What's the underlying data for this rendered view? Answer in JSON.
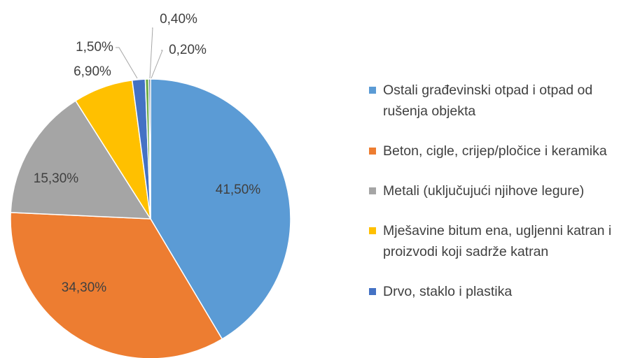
{
  "chart_data": {
    "type": "pie",
    "categories": [
      "Ostali građevinski otpad i otpad od rušenja objekta",
      "Beton, cigle, crijep/pločice i keramika",
      "Metali (uključujući njihove legure)",
      "Mješavine bitum ena, ugljenni katran i proizvodi koji sadrže katran",
      "Drvo, staklo i plastika",
      null,
      null
    ],
    "values": [
      41.5,
      34.3,
      15.3,
      6.9,
      1.5,
      0.4,
      0.2
    ],
    "value_labels": [
      "41,50%",
      "34,30%",
      "15,30%",
      "6,90%",
      "1,50%",
      "0,40%",
      "0,20%"
    ],
    "colors": [
      "#5b9bd5",
      "#ed7d31",
      "#a5a5a5",
      "#ffc000",
      "#4472c4",
      "#70ad47",
      "#264478"
    ],
    "legend": "right"
  }
}
